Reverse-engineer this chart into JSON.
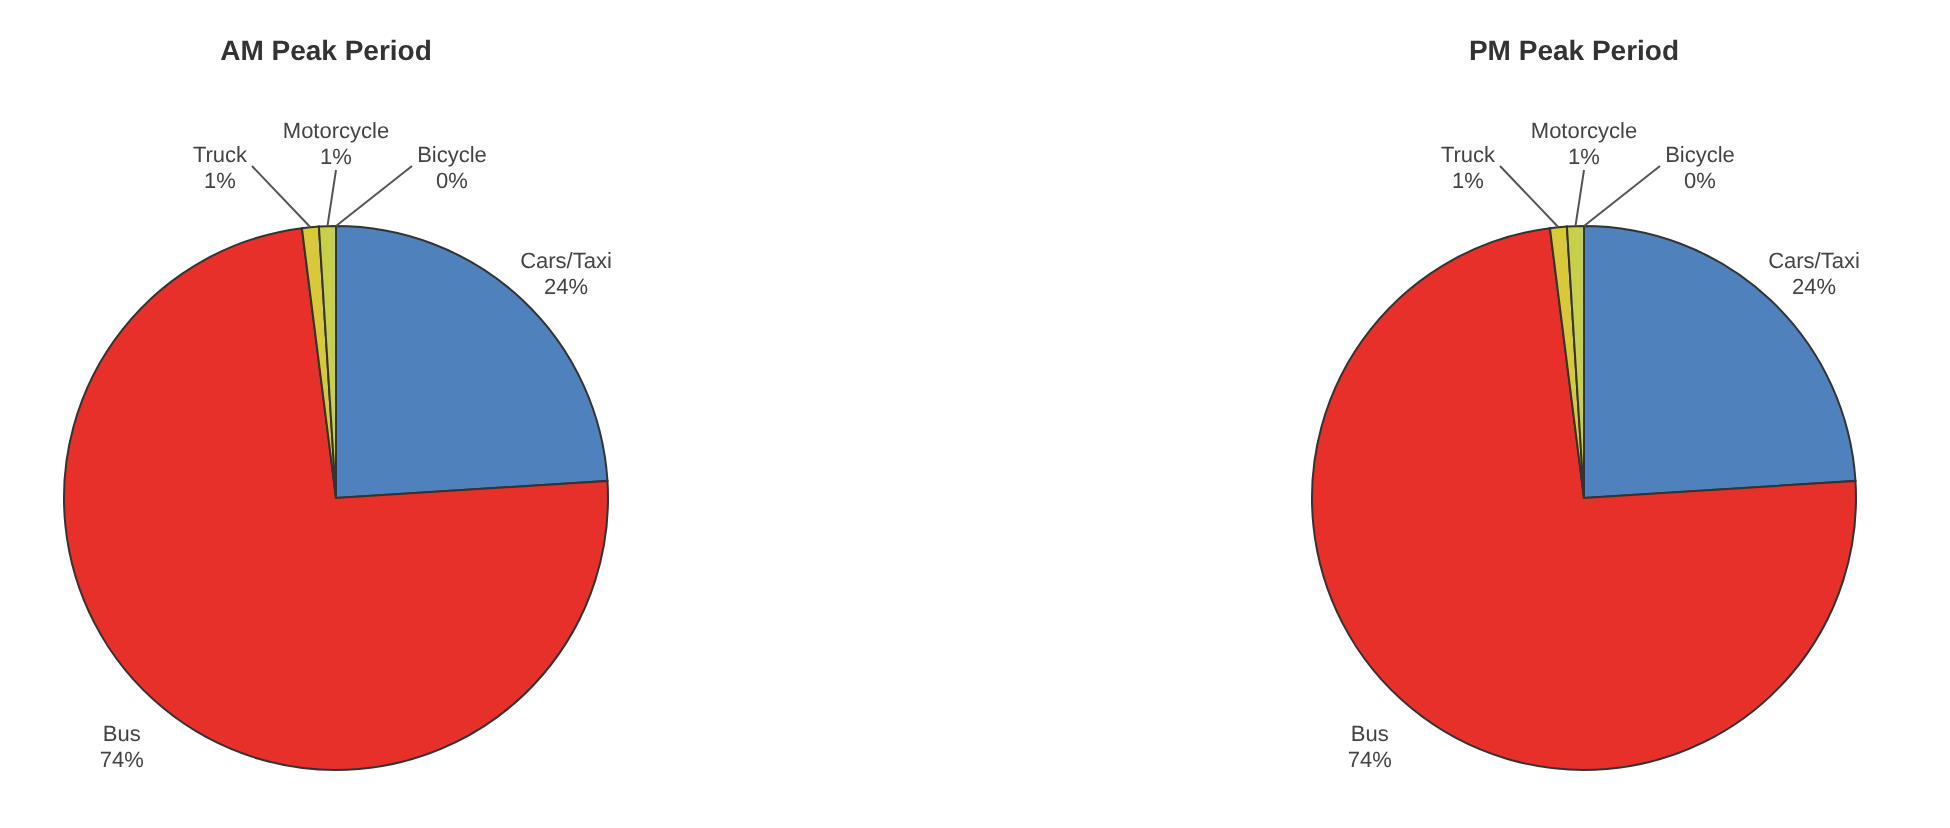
{
  "chart_data": [
    {
      "type": "pie",
      "title": "AM Peak Period",
      "categories": [
        "Cars/Taxi",
        "Bus",
        "Truck",
        "Motorcycle",
        "Bicycle"
      ],
      "values": [
        24,
        74,
        1,
        1,
        0
      ],
      "colors": [
        "#4f81bd",
        "#e8302a",
        "#d8c83a",
        "#c8d04a",
        "#8064a2"
      ],
      "value_labels": [
        "24%",
        "74%",
        "1%",
        "1%",
        "0%"
      ]
    },
    {
      "type": "pie",
      "title": "PM Peak Period",
      "categories": [
        "Cars/Taxi",
        "Bus",
        "Truck",
        "Motorcycle",
        "Bicycle"
      ],
      "values": [
        24,
        74,
        1,
        1,
        0
      ],
      "colors": [
        "#4f81bd",
        "#e8302a",
        "#d8c83a",
        "#c8d04a",
        "#8064a2"
      ],
      "value_labels": [
        "24%",
        "74%",
        "1%",
        "1%",
        "0%"
      ]
    }
  ]
}
